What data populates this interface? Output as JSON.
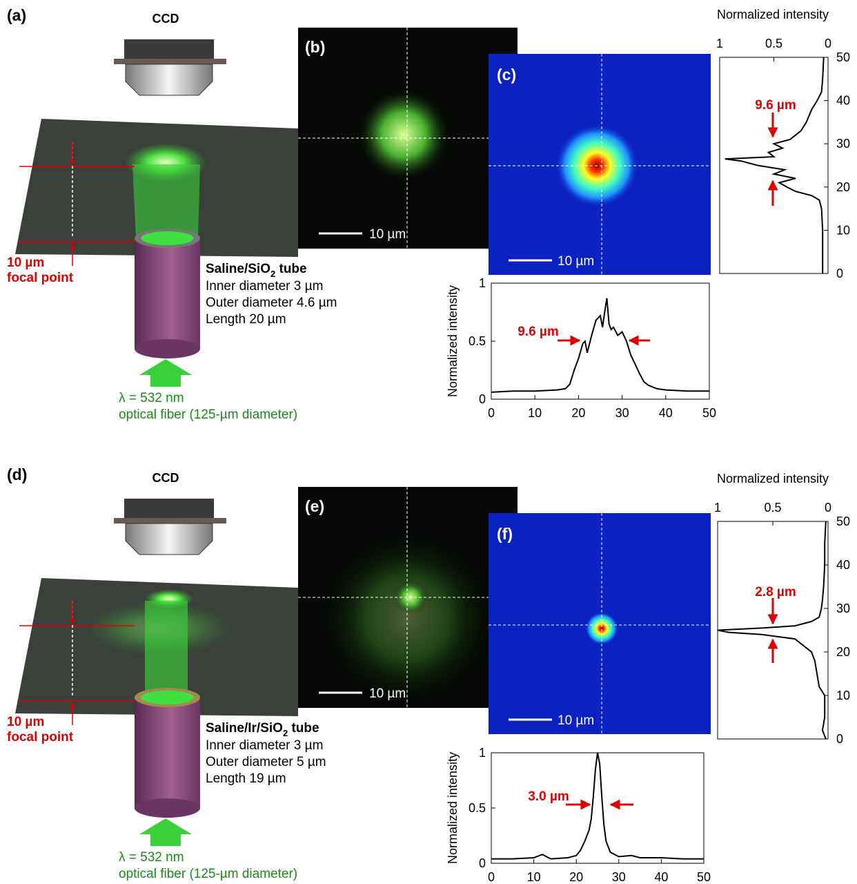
{
  "rows": [
    {
      "diagram": {
        "label": "(a)",
        "camera": "CCD",
        "focal": [
          "10 µm",
          "focal point"
        ],
        "tube_title": [
          "Saline/SiO",
          "2",
          " tube"
        ],
        "tube_specs": [
          "Inner diameter 3 µm",
          "Outer diameter 4.6 µm",
          "Length 20 µm"
        ],
        "source": [
          "λ = 532 nm",
          "optical fiber (125-µm diameter)"
        ]
      },
      "camera_image": {
        "label": "(b)",
        "scale_bar": "10 µm"
      },
      "intensity_map": {
        "label": "(c)",
        "scale_bar": "10 µm"
      }
    },
    {
      "diagram": {
        "label": "(d)",
        "camera": "CCD",
        "focal": [
          "10 µm",
          "focal point"
        ],
        "tube_title": [
          "Saline/Ir/SiO",
          "2",
          " tube"
        ],
        "tube_specs": [
          "Inner diameter 3 µm",
          "Outer diameter 5 µm",
          "Length 19 µm"
        ],
        "source": [
          "λ = 532 nm",
          "optical fiber (125-µm diameter)"
        ]
      },
      "camera_image": {
        "label": "(e)",
        "scale_bar": "10 µm"
      },
      "intensity_map": {
        "label": "(f)",
        "scale_bar": "10 µm"
      }
    }
  ],
  "chart_data": [
    {
      "type": "line",
      "orientation": "horizontal",
      "y_label": "Normalized intensity",
      "annotation": "9.6 µm",
      "color": "#000000",
      "x": [
        0,
        5,
        10,
        15,
        17,
        18,
        19,
        20,
        21,
        21.5,
        22,
        23,
        24,
        25,
        25.5,
        26,
        26.5,
        27,
        27.5,
        28,
        29,
        30,
        31,
        32,
        33,
        34,
        35,
        36,
        38,
        40,
        45,
        48,
        50
      ],
      "values": [
        0.06,
        0.07,
        0.07,
        0.08,
        0.09,
        0.13,
        0.25,
        0.35,
        0.48,
        0.5,
        0.4,
        0.55,
        0.68,
        0.72,
        0.62,
        0.75,
        0.87,
        0.65,
        0.6,
        0.62,
        0.55,
        0.58,
        0.5,
        0.38,
        0.3,
        0.22,
        0.15,
        0.12,
        0.09,
        0.08,
        0.07,
        0.07,
        0.07
      ],
      "xlim": [
        0,
        50
      ],
      "xticks": [
        0,
        10,
        20,
        30,
        40,
        50
      ],
      "ylim": [
        0,
        1
      ],
      "yticks": [
        0,
        0.5,
        1
      ]
    },
    {
      "type": "line",
      "orientation": "vertical",
      "title": "Normalized intensity",
      "annotation": "9.6 µm",
      "color": "#000000",
      "x": [
        0,
        5,
        10,
        15,
        17,
        18,
        19,
        20,
        21,
        22,
        23,
        24,
        25,
        26,
        26.5,
        27,
        28,
        29,
        30,
        31,
        32,
        33,
        35,
        38,
        40,
        42,
        45,
        50
      ],
      "values": [
        0.05,
        0.05,
        0.05,
        0.06,
        0.08,
        0.15,
        0.3,
        0.38,
        0.45,
        0.3,
        0.5,
        0.4,
        0.65,
        0.8,
        0.95,
        0.5,
        0.55,
        0.42,
        0.5,
        0.35,
        0.3,
        0.25,
        0.2,
        0.15,
        0.1,
        0.06,
        0.05,
        0.04
      ],
      "xlim": [
        0,
        50
      ],
      "xticks": [
        0,
        10,
        20,
        30,
        40,
        50
      ],
      "ylim": [
        1,
        0
      ],
      "yticks": [
        1,
        0.5,
        0
      ]
    },
    {
      "type": "line",
      "orientation": "horizontal",
      "y_label": "Normalized intensity",
      "annotation": "3.0 µm",
      "color": "#000000",
      "x": [
        0,
        5,
        10,
        12,
        14,
        18,
        20,
        21,
        22,
        23,
        23.5,
        24,
        24.5,
        25,
        25.5,
        26,
        26.5,
        27,
        28,
        30,
        33,
        35,
        40,
        45,
        50
      ],
      "values": [
        0.04,
        0.04,
        0.05,
        0.08,
        0.04,
        0.05,
        0.07,
        0.12,
        0.2,
        0.3,
        0.4,
        0.6,
        0.85,
        1,
        0.9,
        0.6,
        0.35,
        0.2,
        0.1,
        0.06,
        0.07,
        0.05,
        0.05,
        0.04,
        0.04
      ],
      "xlim": [
        0,
        50
      ],
      "xticks": [
        0,
        10,
        20,
        30,
        40,
        50
      ],
      "ylim": [
        0,
        1
      ],
      "yticks": [
        0,
        0.5,
        1
      ]
    },
    {
      "type": "line",
      "orientation": "vertical",
      "title": "Normalized intensity",
      "annotation": "2.8 µm",
      "color": "#000000",
      "x": [
        0,
        2,
        5,
        10,
        12,
        15,
        18,
        20,
        21,
        22,
        23,
        23.5,
        24,
        24.5,
        25,
        25.5,
        26,
        27,
        28,
        30,
        32,
        35,
        40,
        45,
        50
      ],
      "values": [
        0.02,
        0.05,
        0.03,
        0.03,
        0.08,
        0.1,
        0.12,
        0.15,
        0.2,
        0.25,
        0.3,
        0.45,
        0.6,
        0.9,
        1,
        0.6,
        0.3,
        0.15,
        0.08,
        0.06,
        0.05,
        0.04,
        0.03,
        0.03,
        0.02
      ],
      "xlim": [
        0,
        50
      ],
      "xticks": [
        0,
        10,
        20,
        30,
        40,
        50
      ],
      "ylim": [
        1,
        0
      ],
      "yticks": [
        1,
        0.5,
        0
      ]
    }
  ]
}
